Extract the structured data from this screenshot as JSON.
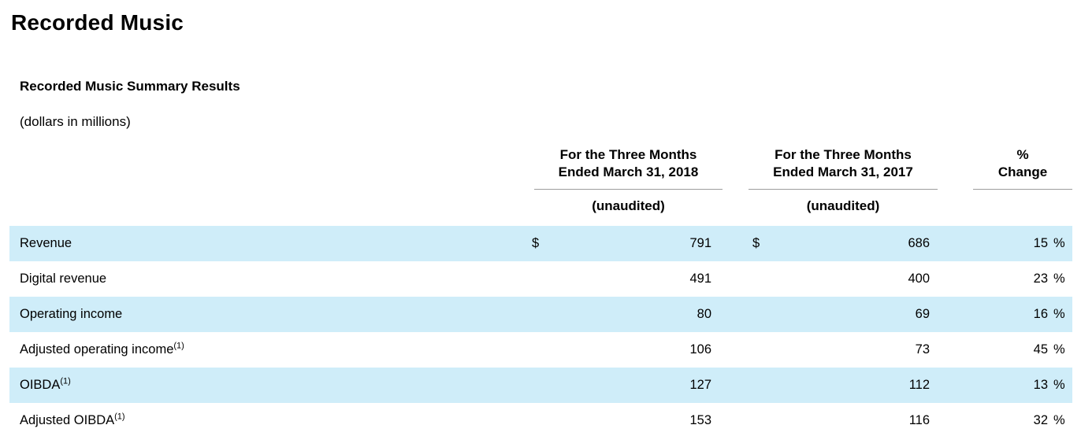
{
  "document": {
    "title": "Recorded Music",
    "section_heading": "Recorded Music Summary Results",
    "units_note": "(dollars in millions)"
  },
  "table": {
    "columns": {
      "col_2018": {
        "line1": "For the Three Months",
        "line2": "Ended March 31, 2018",
        "subheader": "(unaudited)"
      },
      "col_2017": {
        "line1": "For the Three Months",
        "line2": "Ended March 31, 2017",
        "subheader": "(unaudited)"
      },
      "col_change": {
        "line1": "%",
        "line2": "Change",
        "subheader": ""
      }
    },
    "rows": [
      {
        "label": "Revenue",
        "sup": "",
        "cur_2018": "$",
        "v2018": "791",
        "cur_2017": "$",
        "v2017": "686",
        "pct": "15",
        "pct_sign": "%"
      },
      {
        "label": "Digital revenue",
        "sup": "",
        "cur_2018": "",
        "v2018": "491",
        "cur_2017": "",
        "v2017": "400",
        "pct": "23",
        "pct_sign": "%"
      },
      {
        "label": "Operating income",
        "sup": "",
        "cur_2018": "",
        "v2018": "80",
        "cur_2017": "",
        "v2017": "69",
        "pct": "16",
        "pct_sign": "%"
      },
      {
        "label": "Adjusted operating income",
        "sup": "(1)",
        "cur_2018": "",
        "v2018": "106",
        "cur_2017": "",
        "v2017": "73",
        "pct": "45",
        "pct_sign": "%"
      },
      {
        "label": "OIBDA",
        "sup": "(1)",
        "cur_2018": "",
        "v2018": "127",
        "cur_2017": "",
        "v2017": "112",
        "pct": "13",
        "pct_sign": "%"
      },
      {
        "label": "Adjusted OIBDA",
        "sup": "(1)",
        "cur_2018": "",
        "v2018": "153",
        "cur_2017": "",
        "v2017": "116",
        "pct": "32",
        "pct_sign": "%"
      }
    ],
    "colors": {
      "row_stripe": "#cfedf9",
      "header_rule": "#9d9d9d"
    }
  }
}
